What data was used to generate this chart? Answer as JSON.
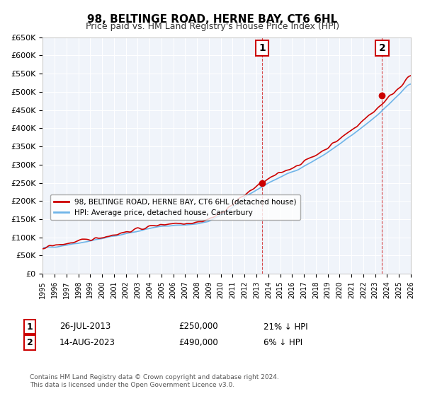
{
  "title": "98, BELTINGE ROAD, HERNE BAY, CT6 6HL",
  "subtitle": "Price paid vs. HM Land Registry's House Price Index (HPI)",
  "ylabel_ticks": [
    "£0",
    "£50K",
    "£100K",
    "£150K",
    "£200K",
    "£250K",
    "£300K",
    "£350K",
    "£400K",
    "£450K",
    "£500K",
    "£550K",
    "£600K",
    "£650K"
  ],
  "ytick_values": [
    0,
    50000,
    100000,
    150000,
    200000,
    250000,
    300000,
    350000,
    400000,
    450000,
    500000,
    550000,
    600000,
    650000
  ],
  "x_start_year": 1995,
  "x_end_year": 2026,
  "hpi_color": "#6EB4E8",
  "price_color": "#CC0000",
  "sale1_date": "26-JUL-2013",
  "sale1_price": 250000,
  "sale1_hpi_pct": "21% ↓ HPI",
  "sale2_date": "14-AUG-2023",
  "sale2_price": 490000,
  "sale2_hpi_pct": "6% ↓ HPI",
  "legend_label1": "98, BELTINGE ROAD, HERNE BAY, CT6 6HL (detached house)",
  "legend_label2": "HPI: Average price, detached house, Canterbury",
  "footnote": "Contains HM Land Registry data © Crown copyright and database right 2024.\nThis data is licensed under the Open Government Licence v3.0.",
  "annotation1_label": "1",
  "annotation2_label": "2",
  "background_color": "#FFFFFF",
  "plot_bg_color": "#F0F4FA"
}
